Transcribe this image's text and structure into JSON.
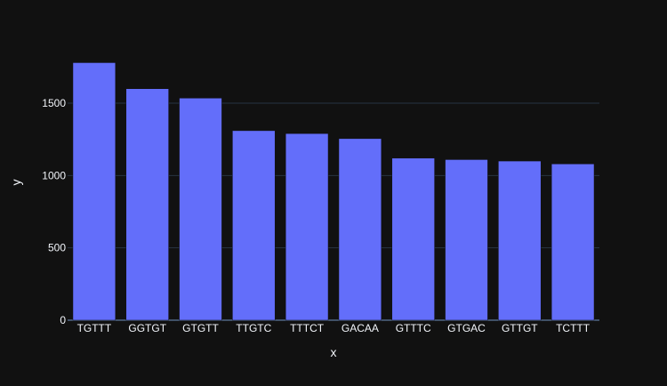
{
  "chart_data": {
    "type": "bar",
    "categories": [
      "TGTTT",
      "GGTGT",
      "GTGTT",
      "TTGTC",
      "TTTCT",
      "GACAA",
      "GTTTC",
      "GTGAC",
      "GTTGT",
      "TCTTT"
    ],
    "values": [
      1780,
      1600,
      1535,
      1310,
      1290,
      1255,
      1120,
      1110,
      1100,
      1080
    ],
    "xlabel": "x",
    "ylabel": "y",
    "ylim": [
      0,
      1875
    ],
    "yticks": [
      0,
      500,
      1000,
      1500
    ],
    "grid": true,
    "colors": {
      "bar": "#636efa",
      "background": "#111111",
      "grid": "#283442",
      "text": "#f2f5fa"
    }
  }
}
